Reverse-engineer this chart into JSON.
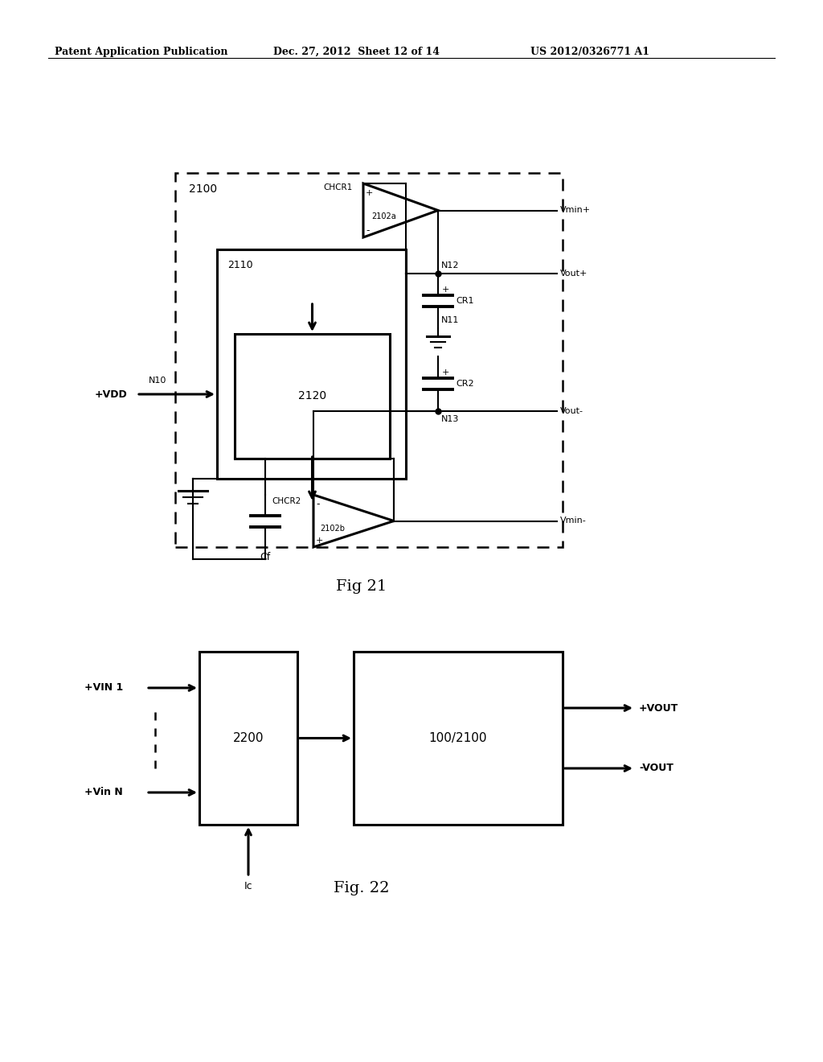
{
  "bg_color": "#ffffff",
  "header_left": "Patent Application Publication",
  "header_mid": "Dec. 27, 2012  Sheet 12 of 14",
  "header_right": "US 2012/0326771 A1",
  "fig21_label": "Fig 21",
  "fig22_label": "Fig. 22",
  "fig21_number": "2100",
  "fig21_2110": "2110",
  "fig21_2120": "2120",
  "fig21_chcr1": "CHCR1",
  "fig21_2102a": "2102a",
  "fig21_chcr2": "CHCR2",
  "fig21_2102b": "2102b",
  "fig21_n10": "N10",
  "fig21_n11": "N11",
  "fig21_n12": "N12",
  "fig21_n13": "N13",
  "fig21_vdd": "+VDD",
  "fig21_vout_plus": "Vout+",
  "fig21_vout_minus": "Vout-",
  "fig21_vmin_plus": "Vmin+",
  "fig21_vmin_minus": "Vmin-",
  "fig21_cr1": "CR1",
  "fig21_cr2": "CR2",
  "fig21_cf": "Cf",
  "fig22_2200": "2200",
  "fig22_100_2100": "100/2100",
  "fig22_vin1": "+VIN 1",
  "fig22_vinN": "+Vin N",
  "fig22_vout_plus": "+VOUT",
  "fig22_vout_minus": "-VOUT",
  "fig22_ic": "Ic"
}
